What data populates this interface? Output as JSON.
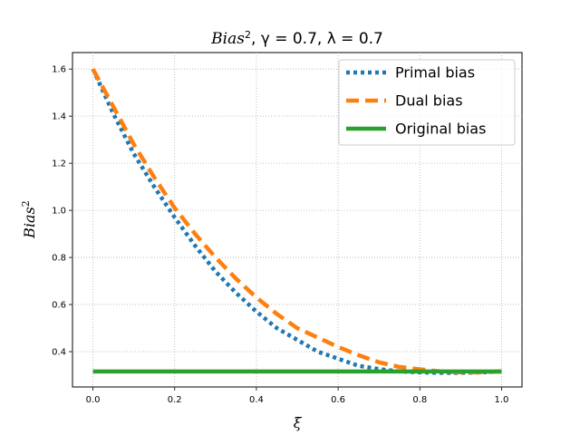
{
  "chart_data": {
    "type": "line",
    "title": {
      "base": "Bias",
      "exponent": "2",
      "rest": ", γ = 0.7, λ = 0.7"
    },
    "xlabel": "ξ",
    "ylabel": {
      "base": "Bias",
      "exponent": "2"
    },
    "xlim": [
      -0.05,
      1.05
    ],
    "ylim": [
      0.25,
      1.67
    ],
    "x_ticks": [
      0.0,
      0.2,
      0.4,
      0.6,
      0.8,
      1.0
    ],
    "x_tick_labels": [
      "0.0",
      "0.2",
      "0.4",
      "0.6",
      "0.8",
      "1.0"
    ],
    "y_ticks": [
      0.4,
      0.6,
      0.8,
      1.0,
      1.2,
      1.4,
      1.6
    ],
    "y_tick_labels": [
      "0.4",
      "0.6",
      "0.8",
      "1.0",
      "1.2",
      "1.4",
      "1.6"
    ],
    "grid": true,
    "legend_position": "top-right",
    "series": [
      {
        "name": "Primal bias",
        "color": "#1f77b4",
        "style": "dotted",
        "x": [
          0.0,
          0.05,
          0.1,
          0.15,
          0.2,
          0.25,
          0.3,
          0.35,
          0.4,
          0.45,
          0.5,
          0.55,
          0.6,
          0.65,
          0.7,
          0.75,
          0.8,
          0.85,
          0.9,
          0.95,
          1.0
        ],
        "y": [
          1.6,
          1.41,
          1.24,
          1.1,
          0.97,
          0.85,
          0.74,
          0.65,
          0.57,
          0.5,
          0.45,
          0.4,
          0.37,
          0.34,
          0.326,
          0.316,
          0.312,
          0.31,
          0.31,
          0.312,
          0.316
        ]
      },
      {
        "name": "Dual bias",
        "color": "#ff7f0e",
        "style": "dashed",
        "x": [
          0.0,
          0.05,
          0.1,
          0.15,
          0.2,
          0.25,
          0.3,
          0.35,
          0.4,
          0.45,
          0.5,
          0.55,
          0.6,
          0.65,
          0.7,
          0.75,
          0.8,
          0.85,
          0.9,
          0.95,
          1.0
        ],
        "y": [
          1.6,
          1.44,
          1.28,
          1.14,
          1.01,
          0.9,
          0.8,
          0.71,
          0.63,
          0.56,
          0.5,
          0.46,
          0.42,
          0.385,
          0.355,
          0.335,
          0.325,
          0.316,
          0.312,
          0.312,
          0.316
        ]
      },
      {
        "name": "Original bias",
        "color": "#2ca02c",
        "style": "solid",
        "x": [
          0.0,
          1.0
        ],
        "y": [
          0.316,
          0.316
        ]
      }
    ]
  }
}
